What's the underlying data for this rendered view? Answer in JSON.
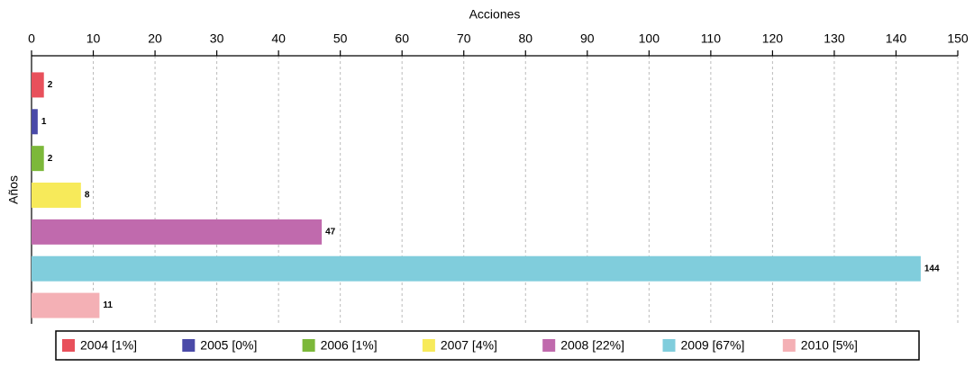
{
  "chart_data": {
    "type": "bar",
    "orientation": "horizontal",
    "x_label": "Acciones",
    "y_label": "Años",
    "xlim": [
      0,
      150
    ],
    "xticks": [
      0,
      10,
      20,
      30,
      40,
      50,
      60,
      70,
      80,
      90,
      100,
      110,
      120,
      130,
      140,
      150
    ],
    "grid": true,
    "legend": "bottom",
    "series": [
      {
        "name": "2004 [1%]",
        "color": "#e8505b",
        "values": [
          2
        ]
      },
      {
        "name": "2005 [0%]",
        "color": "#4a4aa8",
        "values": [
          1
        ]
      },
      {
        "name": "2006 [1%]",
        "color": "#7cb83a",
        "values": [
          2
        ]
      },
      {
        "name": "2007 [4%]",
        "color": "#f7ea5a",
        "values": [
          8
        ]
      },
      {
        "name": "2008 [22%]",
        "color": "#c06aad",
        "values": [
          47
        ]
      },
      {
        "name": "2009 [67%]",
        "color": "#80cddc",
        "values": [
          144
        ]
      },
      {
        "name": "2010 [5%]",
        "color": "#f4b0b5",
        "values": [
          11
        ]
      }
    ]
  }
}
